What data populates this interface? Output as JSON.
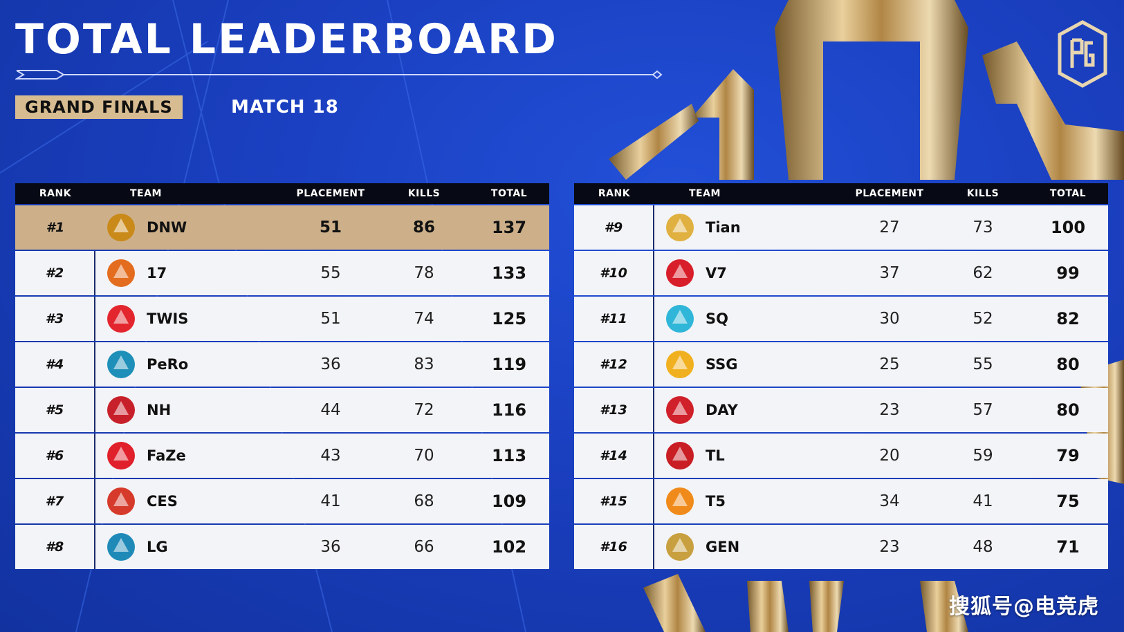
{
  "title": "TOTAL LEADERBOARD",
  "stage": "GRAND FINALS",
  "match": "MATCH 18",
  "headers": {
    "rank": "RANK",
    "team": "TEAM",
    "placement": "PLACEMENT",
    "kills": "KILLS",
    "total": "TOTAL"
  },
  "left_rows": [
    {
      "rank": "#1",
      "team": "DNW",
      "placement": "51",
      "kills": "86",
      "total": "137",
      "logo_color": "#c98a1a",
      "logo_icon": "dnw-logo"
    },
    {
      "rank": "#2",
      "team": "17",
      "placement": "55",
      "kills": "78",
      "total": "133",
      "logo_color": "#e36c1e",
      "logo_icon": "17gaming-logo"
    },
    {
      "rank": "#3",
      "team": "TWIS",
      "placement": "51",
      "kills": "74",
      "total": "125",
      "logo_color": "#e3262e",
      "logo_icon": "twis-logo"
    },
    {
      "rank": "#4",
      "team": "PeRo",
      "placement": "36",
      "kills": "83",
      "total": "119",
      "logo_color": "#1e8fb8",
      "logo_icon": "pero-logo"
    },
    {
      "rank": "#5",
      "team": "NH",
      "placement": "44",
      "kills": "72",
      "total": "116",
      "logo_color": "#c8202a",
      "logo_icon": "nh-logo"
    },
    {
      "rank": "#6",
      "team": "FaZe",
      "placement": "43",
      "kills": "70",
      "total": "113",
      "logo_color": "#e0202a",
      "logo_icon": "faze-logo"
    },
    {
      "rank": "#7",
      "team": "CES",
      "placement": "41",
      "kills": "68",
      "total": "109",
      "logo_color": "#d63a2a",
      "logo_icon": "ces-logo"
    },
    {
      "rank": "#8",
      "team": "LG",
      "placement": "36",
      "kills": "66",
      "total": "102",
      "logo_color": "#1f8ab8",
      "logo_icon": "lg-logo"
    }
  ],
  "right_rows": [
    {
      "rank": "#9",
      "team": "Tian",
      "placement": "27",
      "kills": "73",
      "total": "100",
      "logo_color": "#e0b040",
      "logo_icon": "tian-logo"
    },
    {
      "rank": "#10",
      "team": "V7",
      "placement": "37",
      "kills": "62",
      "total": "99",
      "logo_color": "#d81e2a",
      "logo_icon": "v7-logo"
    },
    {
      "rank": "#11",
      "team": "SQ",
      "placement": "30",
      "kills": "52",
      "total": "82",
      "logo_color": "#2fb6d8",
      "logo_icon": "sq-logo"
    },
    {
      "rank": "#12",
      "team": "SSG",
      "placement": "25",
      "kills": "55",
      "total": "80",
      "logo_color": "#f0b020",
      "logo_icon": "ssg-logo"
    },
    {
      "rank": "#13",
      "team": "DAY",
      "placement": "23",
      "kills": "57",
      "total": "80",
      "logo_color": "#d0202a",
      "logo_icon": "day-logo"
    },
    {
      "rank": "#14",
      "team": "TL",
      "placement": "20",
      "kills": "59",
      "total": "79",
      "logo_color": "#c81e24",
      "logo_icon": "tl-logo"
    },
    {
      "rank": "#15",
      "team": "T5",
      "placement": "34",
      "kills": "41",
      "total": "75",
      "logo_color": "#f08a1a",
      "logo_icon": "t5-logo"
    },
    {
      "rank": "#16",
      "team": "GEN",
      "placement": "23",
      "kills": "48",
      "total": "71",
      "logo_color": "#c8a040",
      "logo_icon": "gen-logo"
    }
  ],
  "highlight_color": "#cdb08a",
  "watermark": "搜狐号@电竞虎"
}
